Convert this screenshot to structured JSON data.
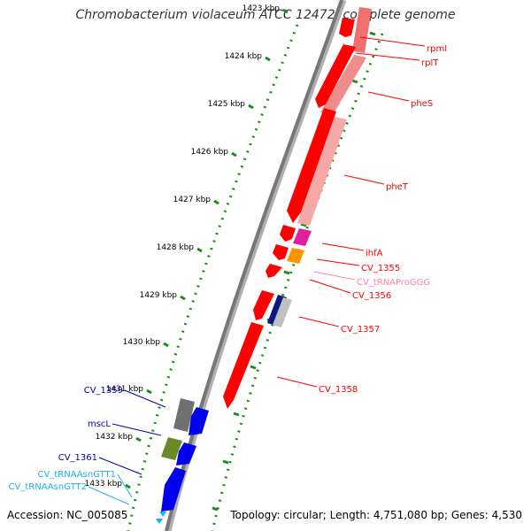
{
  "title": "Chromobacterium violaceum ATCC 12472, complete genome",
  "accession": "Accession: NC_005085",
  "topology": "Topology: circular; Length: 4,751,080 bp; Genes: 4,530",
  "ticks": [
    "1423 kbp",
    "1424 kbp",
    "1425 kbp",
    "1426 kbp",
    "1427 kbp",
    "1428 kbp",
    "1429 kbp",
    "1430 kbp",
    "1431 kbp",
    "1432 kbp",
    "1433 kbp"
  ],
  "colors": {
    "cds": "#ff0000",
    "cds_light": "#f08c8c",
    "gene_red": "#cc0000",
    "gene_blue": "#0000aa",
    "trna": "#1ab2e6",
    "trna_label": "#ff80b0",
    "backbone": "#808080",
    "dots": "#1a8c1a"
  },
  "genes_right": [
    {
      "label": "rpmI",
      "color": "cds"
    },
    {
      "label": "rplT",
      "color": "cds"
    },
    {
      "label": "pheS",
      "color": "cds"
    },
    {
      "label": "pheT",
      "color": "cds"
    },
    {
      "label": "ihfA",
      "color": "cds"
    },
    {
      "label": "CV_1355",
      "color": "cds"
    },
    {
      "label": "CV_tRNAProGGG",
      "color": "trna_label"
    },
    {
      "label": "CV_1356",
      "color": "cds"
    },
    {
      "label": "CV_1357",
      "color": "cds"
    },
    {
      "label": "CV_1358",
      "color": "cds"
    }
  ],
  "genes_left": [
    {
      "label": "CV_1359",
      "color": "gene_blue"
    },
    {
      "label": "mscL",
      "color": "gene_blue"
    },
    {
      "label": "CV_1361",
      "color": "gene_blue"
    },
    {
      "label": "CV_tRNAAsnGTT1",
      "color": "trna"
    },
    {
      "label": "CV_tRNAAsnGTT2",
      "color": "trna"
    }
  ]
}
